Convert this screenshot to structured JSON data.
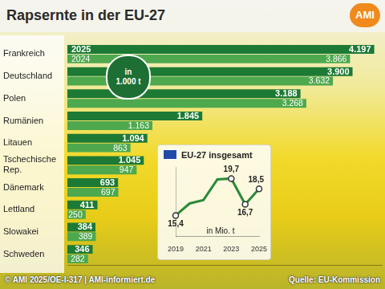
{
  "title": "Rapsernte in der EU-27",
  "logo": "AMI",
  "credit": "© AMI 2025/OE-I-317 | AMI-informiert.de",
  "source": "Quelle: EU-Kommission",
  "chart_data": [
    {
      "type": "bar",
      "orientation": "horizontal",
      "annotations": [
        "in 1.000 t"
      ],
      "categories": [
        "Frankreich",
        "Deutschland",
        "Polen",
        "Rumänien",
        "Litauen",
        "Tschechische Rep.",
        "Dänemark",
        "Lettland",
        "Slowakei",
        "Schweden"
      ],
      "series": [
        {
          "name": "2025",
          "color": "#1d7a35",
          "values": [
            4197,
            3900,
            3188,
            1845,
            1094,
            1045,
            693,
            411,
            384,
            346
          ],
          "value_labels": [
            "4.197",
            "3.900",
            "3.188",
            "1.845",
            "1.094",
            "1.045",
            "693",
            "411",
            "384",
            "346"
          ]
        },
        {
          "name": "2024",
          "color": "#4ea84e",
          "values": [
            3866,
            3632,
            3268,
            1163,
            863,
            947,
            697,
            250,
            389,
            282
          ],
          "value_labels": [
            "3.866",
            "3.632",
            "3.268",
            "1.163",
            "863",
            "947",
            "697",
            "250",
            "389",
            "282"
          ]
        }
      ],
      "xlim": [
        0,
        4300
      ],
      "tick_labels": "y",
      "grid": false,
      "data_labels": true
    },
    {
      "type": "line",
      "title": "EU-27 insgesamt",
      "annotations": [
        "in Mio. t"
      ],
      "categories": [
        "2019",
        null,
        "2021",
        null,
        "2023",
        null,
        "2025"
      ],
      "values": [
        15.4,
        16.8,
        17.2,
        19.6,
        19.7,
        16.7,
        18.5
      ],
      "value_labels": [
        "15,4",
        null,
        null,
        null,
        "19,7",
        "16,7",
        "18,5"
      ],
      "color": "#2b8a3a",
      "ylim": [
        13,
        21
      ],
      "tick_labels": "x",
      "grid": false,
      "data_labels": true,
      "marker": "circle"
    }
  ]
}
